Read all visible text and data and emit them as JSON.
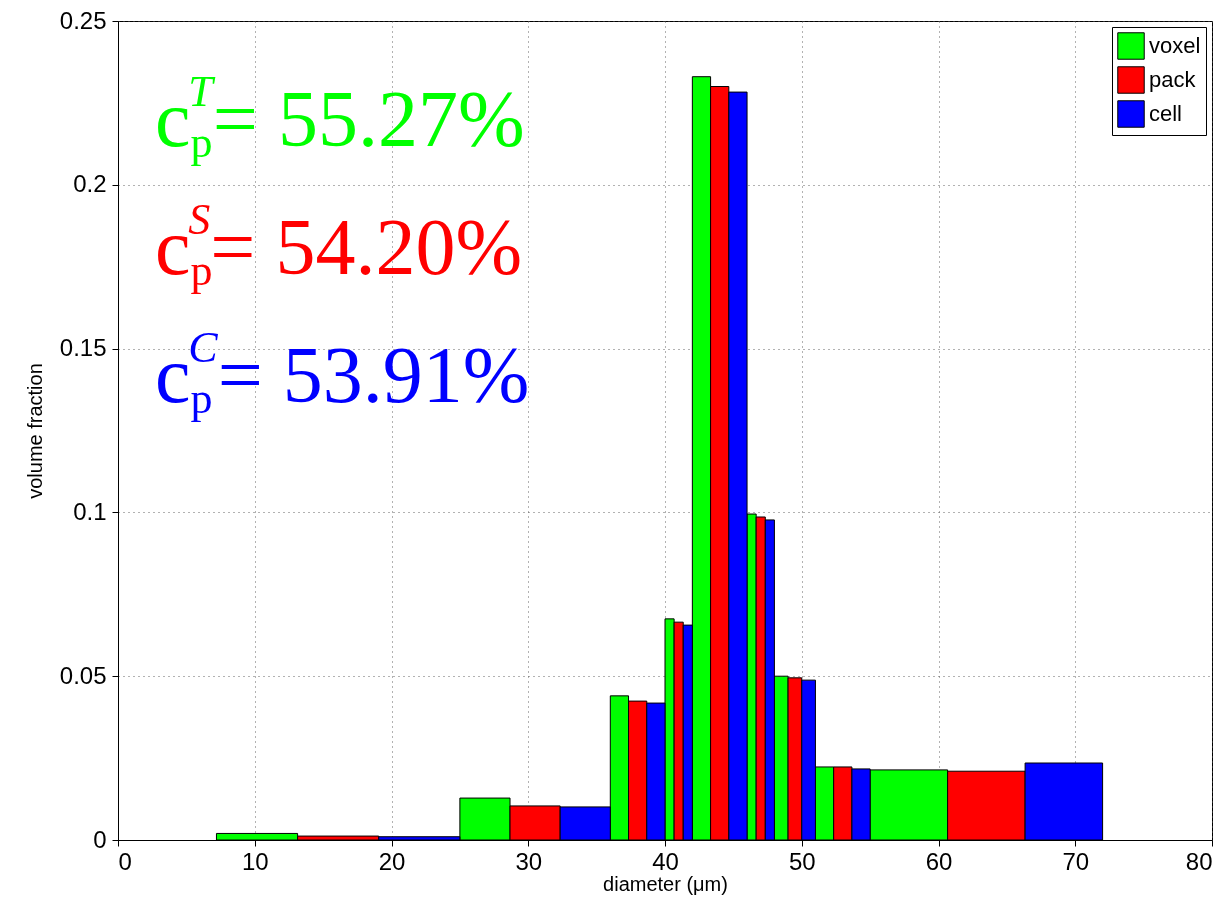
{
  "chart_data": {
    "type": "histogram",
    "xlabel": "diameter (μm)",
    "ylabel": "volume fraction",
    "bins": [
      7.2,
      25,
      36,
      40,
      42,
      46,
      48,
      51,
      55,
      72
    ],
    "series": [
      {
        "name": "voxel",
        "color": "#00ff00",
        "values": [
          0.002,
          0.0128,
          0.044,
          0.0675,
          0.233,
          0.0995,
          0.05,
          0.0223,
          0.0214
        ]
      },
      {
        "name": "pack",
        "color": "#ff0000",
        "values": [
          0.0012,
          0.0104,
          0.0424,
          0.0665,
          0.23,
          0.0986,
          0.0495,
          0.0223,
          0.021
        ]
      },
      {
        "name": "cell",
        "color": "#0000ff",
        "values": [
          0.001,
          0.0101,
          0.0418,
          0.0656,
          0.2283,
          0.0977,
          0.0488,
          0.0217,
          0.0235
        ]
      }
    ],
    "xlim": [
      0,
      80
    ],
    "xticks": [
      0,
      10,
      20,
      30,
      40,
      50,
      60,
      70,
      80
    ],
    "ylim": [
      0,
      0.25
    ],
    "yticks": [
      0,
      0.05,
      0.1,
      0.15,
      0.2,
      0.25
    ],
    "grid": true,
    "legend": "top right",
    "annotations": [
      "c$_{p}$$^{T}$= 55.27%",
      "c$_{p}$$^{S}$= 54.20%",
      "c$_{p}$$^{C}$= 53.91%"
    ]
  }
}
